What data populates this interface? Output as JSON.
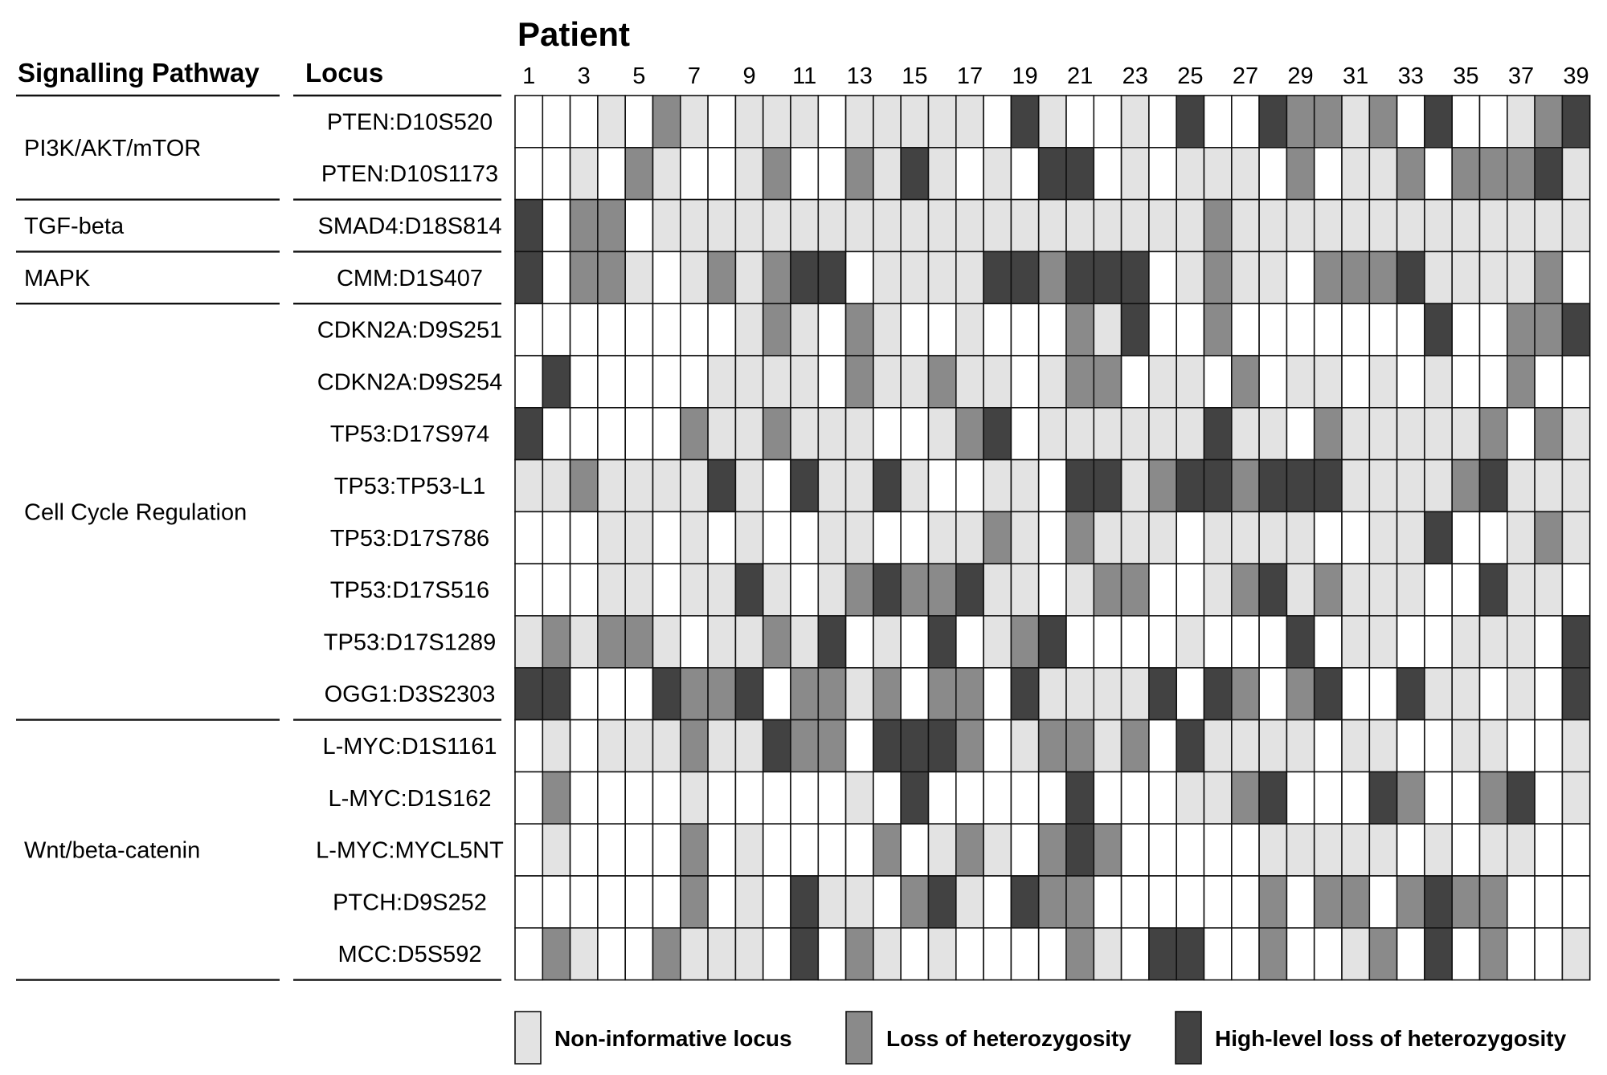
{
  "chart_data": {
    "type": "heatmap",
    "title": "Patient",
    "column_headers": {
      "pathway": "Signalling Pathway",
      "locus": "Locus"
    },
    "x_ticks": [
      "1",
      "3",
      "5",
      "7",
      "9",
      "11",
      "13",
      "15",
      "17",
      "19",
      "21",
      "23",
      "25",
      "27",
      "29",
      "31",
      "33",
      "35",
      "37",
      "39"
    ],
    "patients": 39,
    "pathways": [
      {
        "name": "PI3K/AKT/mTOR",
        "rows": 2
      },
      {
        "name": "TGF-beta",
        "rows": 1
      },
      {
        "name": "MAPK",
        "rows": 1
      },
      {
        "name": "Cell Cycle Regulation",
        "rows": 8
      },
      {
        "name": "Wnt/beta-catenin",
        "rows": 5
      }
    ],
    "loci": [
      "PTEN:D10S520",
      "PTEN:D10S1173",
      "SMAD4:D18S814",
      "CMM:D1S407",
      "CDKN2A:D9S251",
      "CDKN2A:D9S254",
      "TP53:D17S974",
      "TP53:TP53-L1",
      "TP53:D17S786",
      "TP53:D17S516",
      "TP53:D17S1289",
      "OGG1:D3S2303",
      "L-MYC:D1S1161",
      "L-MYC:D1S162",
      "L-MYC:MYCL5NT",
      "PTCH:D9S252",
      "MCC:D5S592"
    ],
    "value_key": {
      "0": "informative, no loss",
      "1": "Non-informative locus",
      "2": "Loss of heterozygosity",
      "3": "High-level loss of heterozygosity"
    },
    "values": [
      [
        0,
        0,
        0,
        1,
        0,
        2,
        1,
        0,
        1,
        1,
        1,
        0,
        1,
        1,
        1,
        1,
        1,
        0,
        3,
        1,
        0,
        0,
        1,
        0,
        3,
        0,
        0,
        3,
        2,
        2,
        1,
        2,
        0,
        3,
        0,
        0,
        1,
        2,
        3
      ],
      [
        0,
        0,
        1,
        0,
        2,
        1,
        0,
        0,
        1,
        2,
        0,
        0,
        2,
        1,
        3,
        1,
        0,
        1,
        0,
        3,
        3,
        0,
        1,
        0,
        1,
        1,
        1,
        0,
        2,
        0,
        1,
        1,
        2,
        0,
        2,
        2,
        2,
        3,
        1
      ],
      [
        3,
        0,
        2,
        2,
        0,
        1,
        1,
        1,
        1,
        1,
        1,
        1,
        1,
        1,
        1,
        1,
        1,
        1,
        1,
        1,
        1,
        1,
        1,
        1,
        1,
        2,
        1,
        1,
        1,
        1,
        1,
        1,
        1,
        1,
        1,
        1,
        1,
        1,
        1
      ],
      [
        3,
        0,
        2,
        2,
        1,
        0,
        1,
        2,
        1,
        2,
        3,
        3,
        0,
        1,
        1,
        1,
        1,
        3,
        3,
        2,
        3,
        3,
        3,
        0,
        1,
        2,
        1,
        1,
        0,
        2,
        2,
        2,
        3,
        1,
        1,
        1,
        1,
        2,
        0
      ],
      [
        0,
        0,
        0,
        0,
        0,
        0,
        0,
        0,
        1,
        2,
        1,
        0,
        2,
        1,
        0,
        0,
        1,
        0,
        0,
        0,
        2,
        1,
        3,
        0,
        0,
        2,
        0,
        0,
        0,
        0,
        0,
        0,
        0,
        3,
        0,
        0,
        2,
        2,
        3
      ],
      [
        0,
        3,
        0,
        0,
        0,
        0,
        0,
        1,
        1,
        1,
        1,
        0,
        2,
        1,
        1,
        2,
        1,
        1,
        0,
        1,
        2,
        2,
        0,
        1,
        1,
        0,
        2,
        0,
        1,
        1,
        0,
        1,
        0,
        1,
        0,
        0,
        2,
        0,
        0
      ],
      [
        3,
        0,
        0,
        0,
        0,
        0,
        2,
        1,
        1,
        2,
        1,
        1,
        1,
        0,
        0,
        1,
        2,
        3,
        0,
        1,
        1,
        1,
        1,
        1,
        1,
        3,
        1,
        1,
        0,
        2,
        1,
        1,
        1,
        1,
        1,
        2,
        0,
        2,
        1
      ],
      [
        1,
        1,
        2,
        1,
        1,
        1,
        1,
        3,
        1,
        0,
        3,
        1,
        1,
        3,
        1,
        0,
        0,
        1,
        1,
        0,
        3,
        3,
        1,
        2,
        3,
        3,
        2,
        3,
        3,
        3,
        1,
        1,
        1,
        1,
        2,
        3,
        1,
        1,
        1
      ],
      [
        0,
        0,
        0,
        1,
        1,
        0,
        1,
        0,
        1,
        0,
        0,
        1,
        1,
        0,
        0,
        1,
        1,
        2,
        1,
        0,
        2,
        1,
        1,
        1,
        0,
        1,
        1,
        1,
        1,
        0,
        0,
        1,
        1,
        3,
        0,
        0,
        1,
        2,
        1
      ],
      [
        0,
        0,
        0,
        1,
        1,
        0,
        1,
        1,
        3,
        1,
        0,
        1,
        2,
        3,
        2,
        2,
        3,
        1,
        1,
        0,
        1,
        2,
        2,
        0,
        0,
        1,
        2,
        3,
        1,
        2,
        1,
        1,
        1,
        0,
        0,
        3,
        1,
        1,
        0
      ],
      [
        1,
        2,
        1,
        2,
        2,
        1,
        0,
        1,
        1,
        2,
        1,
        3,
        0,
        1,
        0,
        3,
        0,
        1,
        2,
        3,
        0,
        0,
        0,
        0,
        1,
        0,
        0,
        0,
        3,
        0,
        1,
        1,
        0,
        0,
        1,
        1,
        1,
        0,
        3
      ],
      [
        3,
        3,
        0,
        0,
        0,
        3,
        2,
        2,
        3,
        0,
        2,
        2,
        1,
        2,
        0,
        2,
        2,
        0,
        3,
        1,
        1,
        1,
        1,
        3,
        0,
        3,
        2,
        0,
        2,
        3,
        0,
        0,
        3,
        1,
        1,
        0,
        1,
        0,
        3
      ],
      [
        0,
        1,
        0,
        1,
        1,
        1,
        2,
        1,
        1,
        3,
        2,
        2,
        0,
        3,
        3,
        3,
        2,
        0,
        1,
        2,
        2,
        1,
        2,
        0,
        3,
        1,
        1,
        1,
        1,
        0,
        1,
        1,
        0,
        0,
        1,
        1,
        0,
        0,
        1
      ],
      [
        0,
        2,
        0,
        0,
        0,
        0,
        1,
        0,
        0,
        0,
        0,
        0,
        1,
        0,
        3,
        0,
        0,
        0,
        0,
        0,
        3,
        0,
        0,
        0,
        1,
        1,
        2,
        3,
        0,
        0,
        0,
        3,
        2,
        0,
        0,
        2,
        3,
        0,
        1
      ],
      [
        0,
        1,
        0,
        0,
        0,
        0,
        2,
        0,
        1,
        0,
        0,
        0,
        0,
        2,
        0,
        1,
        2,
        1,
        0,
        2,
        3,
        2,
        0,
        0,
        0,
        0,
        0,
        1,
        1,
        1,
        1,
        1,
        0,
        1,
        0,
        1,
        1,
        0,
        0
      ],
      [
        0,
        0,
        0,
        0,
        0,
        0,
        2,
        0,
        1,
        0,
        3,
        1,
        1,
        0,
        2,
        3,
        1,
        0,
        3,
        2,
        2,
        0,
        0,
        0,
        0,
        0,
        0,
        2,
        0,
        2,
        2,
        0,
        2,
        3,
        2,
        2,
        0,
        0,
        0
      ],
      [
        0,
        2,
        1,
        0,
        0,
        2,
        1,
        1,
        1,
        0,
        3,
        0,
        2,
        1,
        0,
        1,
        0,
        0,
        0,
        0,
        2,
        1,
        0,
        3,
        3,
        0,
        0,
        2,
        0,
        0,
        1,
        2,
        0,
        3,
        0,
        2,
        0,
        0,
        1
      ]
    ],
    "legend": [
      {
        "label": "Non-informative locus",
        "level": 1
      },
      {
        "label": "Loss of heterozygosity",
        "level": 2
      },
      {
        "label": "High-level loss of heterozygosity",
        "level": 3
      }
    ],
    "colors": {
      "0": "#ffffff",
      "1": "#e3e3e3",
      "2": "#8a8a8a",
      "3": "#424242",
      "border": "#111111"
    }
  }
}
